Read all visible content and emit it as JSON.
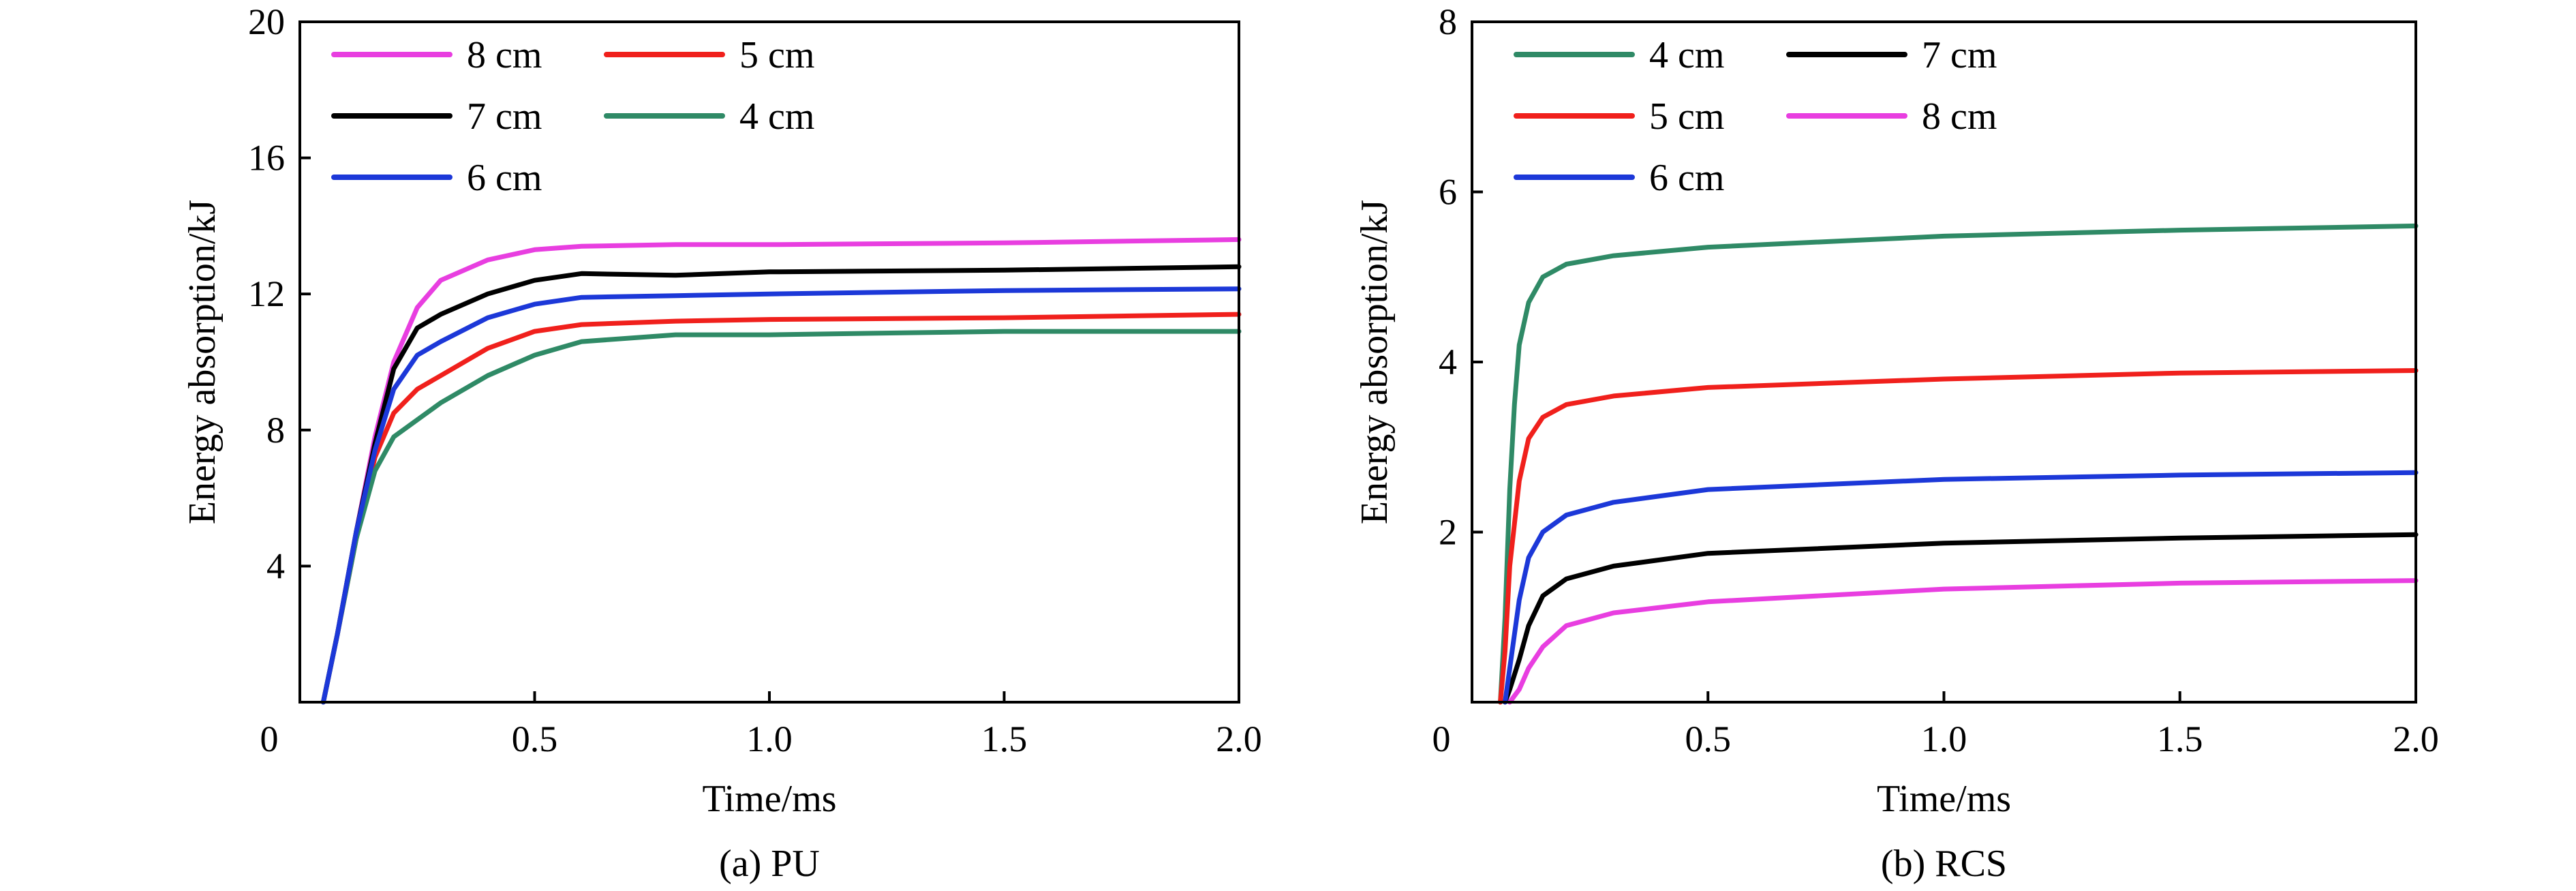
{
  "chart_data": [
    {
      "type": "line",
      "caption": "(a) PU",
      "xlabel": "Time/ms",
      "ylabel": "Energy absorption/kJ",
      "xlim": [
        0,
        2.0
      ],
      "ylim": [
        0,
        20
      ],
      "xticks": [
        0,
        0.5,
        1.0,
        1.5,
        2.0
      ],
      "xtick_labels": [
        "0",
        "0.5",
        "1.0",
        "1.5",
        "2.0"
      ],
      "yticks": [
        4,
        8,
        12,
        16,
        20
      ],
      "ytick_labels": [
        "4",
        "8",
        "12",
        "16",
        "20"
      ],
      "grid": false,
      "legend_position": "top-left",
      "legend_order": [
        "8 cm",
        "5 cm",
        "7 cm",
        "4 cm",
        "6 cm"
      ],
      "series": [
        {
          "name": "8 cm",
          "color": "#e83ee0",
          "points": [
            [
              0.05,
              0
            ],
            [
              0.08,
              2
            ],
            [
              0.12,
              5
            ],
            [
              0.16,
              7.8
            ],
            [
              0.2,
              10
            ],
            [
              0.25,
              11.6
            ],
            [
              0.3,
              12.4
            ],
            [
              0.4,
              13.0
            ],
            [
              0.5,
              13.3
            ],
            [
              0.6,
              13.4
            ],
            [
              0.8,
              13.45
            ],
            [
              1.0,
              13.45
            ],
            [
              1.5,
              13.5
            ],
            [
              2.0,
              13.6
            ]
          ]
        },
        {
          "name": "5 cm",
          "color": "#f0201c",
          "points": [
            [
              0.05,
              0
            ],
            [
              0.08,
              2
            ],
            [
              0.12,
              4.8
            ],
            [
              0.16,
              7.2
            ],
            [
              0.2,
              8.5
            ],
            [
              0.25,
              9.2
            ],
            [
              0.3,
              9.6
            ],
            [
              0.4,
              10.4
            ],
            [
              0.5,
              10.9
            ],
            [
              0.6,
              11.1
            ],
            [
              0.8,
              11.2
            ],
            [
              1.0,
              11.25
            ],
            [
              1.5,
              11.3
            ],
            [
              2.0,
              11.4
            ]
          ]
        },
        {
          "name": "7 cm",
          "color": "#000000",
          "points": [
            [
              0.05,
              0
            ],
            [
              0.08,
              2
            ],
            [
              0.12,
              5
            ],
            [
              0.16,
              7.6
            ],
            [
              0.2,
              9.8
            ],
            [
              0.25,
              11.0
            ],
            [
              0.3,
              11.4
            ],
            [
              0.4,
              12.0
            ],
            [
              0.5,
              12.4
            ],
            [
              0.6,
              12.6
            ],
            [
              0.8,
              12.55
            ],
            [
              1.0,
              12.65
            ],
            [
              1.5,
              12.7
            ],
            [
              2.0,
              12.8
            ]
          ]
        },
        {
          "name": "4 cm",
          "color": "#2f8a66",
          "points": [
            [
              0.05,
              0
            ],
            [
              0.08,
              2
            ],
            [
              0.12,
              4.8
            ],
            [
              0.16,
              6.8
            ],
            [
              0.2,
              7.8
            ],
            [
              0.25,
              8.3
            ],
            [
              0.3,
              8.8
            ],
            [
              0.4,
              9.6
            ],
            [
              0.5,
              10.2
            ],
            [
              0.6,
              10.6
            ],
            [
              0.8,
              10.8
            ],
            [
              1.0,
              10.8
            ],
            [
              1.5,
              10.9
            ],
            [
              2.0,
              10.9
            ]
          ]
        },
        {
          "name": "6 cm",
          "color": "#1c38d8",
          "points": [
            [
              0.05,
              0
            ],
            [
              0.08,
              2
            ],
            [
              0.12,
              5
            ],
            [
              0.16,
              7.4
            ],
            [
              0.2,
              9.2
            ],
            [
              0.25,
              10.2
            ],
            [
              0.3,
              10.6
            ],
            [
              0.4,
              11.3
            ],
            [
              0.5,
              11.7
            ],
            [
              0.6,
              11.9
            ],
            [
              0.8,
              11.95
            ],
            [
              1.0,
              12.0
            ],
            [
              1.5,
              12.1
            ],
            [
              2.0,
              12.15
            ]
          ]
        }
      ]
    },
    {
      "type": "line",
      "caption": "(b) RCS",
      "xlabel": "Time/ms",
      "ylabel": "Energy absorption/kJ",
      "xlim": [
        0,
        2.0
      ],
      "ylim": [
        0,
        8
      ],
      "xticks": [
        0,
        0.5,
        1.0,
        1.5,
        2.0
      ],
      "xtick_labels": [
        "0",
        "0.5",
        "1.0",
        "1.5",
        "2.0"
      ],
      "yticks": [
        2,
        4,
        6,
        8
      ],
      "ytick_labels": [
        "2",
        "4",
        "6",
        "8"
      ],
      "grid": false,
      "legend_position": "top-left",
      "legend_order": [
        "4 cm",
        "7 cm",
        "5 cm",
        "8 cm",
        "6 cm"
      ],
      "series": [
        {
          "name": "4 cm",
          "color": "#2f8a66",
          "points": [
            [
              0.06,
              0
            ],
            [
              0.07,
              1.0
            ],
            [
              0.08,
              2.5
            ],
            [
              0.09,
              3.5
            ],
            [
              0.1,
              4.2
            ],
            [
              0.12,
              4.7
            ],
            [
              0.15,
              5.0
            ],
            [
              0.2,
              5.15
            ],
            [
              0.3,
              5.25
            ],
            [
              0.5,
              5.35
            ],
            [
              1.0,
              5.48
            ],
            [
              1.5,
              5.55
            ],
            [
              2.0,
              5.6
            ]
          ]
        },
        {
          "name": "7 cm",
          "color": "#000000",
          "points": [
            [
              0.07,
              0
            ],
            [
              0.08,
              0.15
            ],
            [
              0.1,
              0.5
            ],
            [
              0.12,
              0.9
            ],
            [
              0.15,
              1.25
            ],
            [
              0.2,
              1.45
            ],
            [
              0.3,
              1.6
            ],
            [
              0.5,
              1.75
            ],
            [
              1.0,
              1.87
            ],
            [
              1.5,
              1.93
            ],
            [
              2.0,
              1.97
            ]
          ]
        },
        {
          "name": "5 cm",
          "color": "#f0201c",
          "points": [
            [
              0.06,
              0
            ],
            [
              0.07,
              0.6
            ],
            [
              0.08,
              1.6
            ],
            [
              0.1,
              2.6
            ],
            [
              0.12,
              3.1
            ],
            [
              0.15,
              3.35
            ],
            [
              0.2,
              3.5
            ],
            [
              0.3,
              3.6
            ],
            [
              0.5,
              3.7
            ],
            [
              1.0,
              3.8
            ],
            [
              1.5,
              3.87
            ],
            [
              2.0,
              3.9
            ]
          ]
        },
        {
          "name": "8 cm",
          "color": "#e83ee0",
          "points": [
            [
              0.08,
              0
            ],
            [
              0.1,
              0.15
            ],
            [
              0.12,
              0.4
            ],
            [
              0.15,
              0.65
            ],
            [
              0.2,
              0.9
            ],
            [
              0.3,
              1.05
            ],
            [
              0.5,
              1.18
            ],
            [
              1.0,
              1.33
            ],
            [
              1.5,
              1.4
            ],
            [
              2.0,
              1.43
            ]
          ]
        },
        {
          "name": "6 cm",
          "color": "#1c38d8",
          "points": [
            [
              0.07,
              0
            ],
            [
              0.08,
              0.4
            ],
            [
              0.1,
              1.2
            ],
            [
              0.12,
              1.7
            ],
            [
              0.15,
              2.0
            ],
            [
              0.2,
              2.2
            ],
            [
              0.3,
              2.35
            ],
            [
              0.5,
              2.5
            ],
            [
              1.0,
              2.62
            ],
            [
              1.5,
              2.67
            ],
            [
              2.0,
              2.7
            ]
          ]
        }
      ]
    }
  ]
}
